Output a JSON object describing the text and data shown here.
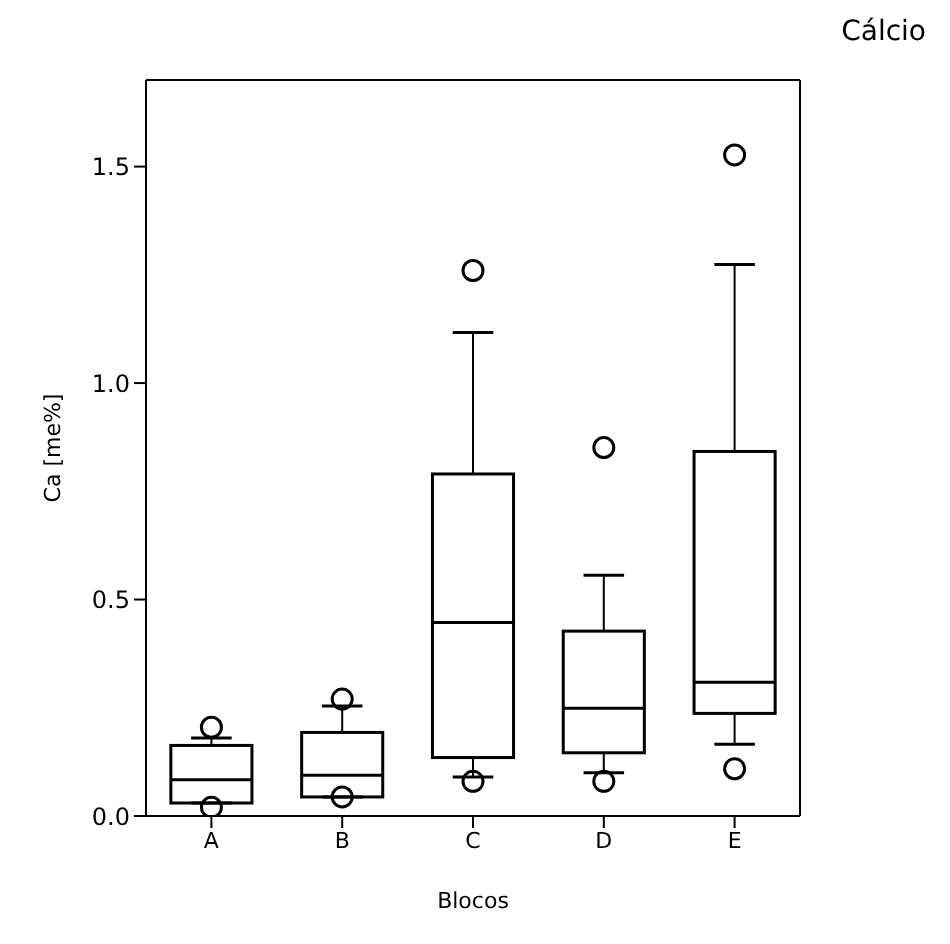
{
  "chart_data": {
    "type": "box",
    "title": "Cálcio",
    "xlabel": "Blocos",
    "ylabel": "Ca [me%]",
    "color": "#000000",
    "categories": [
      "A",
      "B",
      "C",
      "D",
      "E"
    ],
    "boxes": [
      {
        "low": 0.03,
        "q1": 0.03,
        "median": 0.084,
        "q3": 0.163,
        "high": 0.18,
        "outliers": [
          0.205,
          0.02
        ]
      },
      {
        "low": 0.044,
        "q1": 0.044,
        "median": 0.094,
        "q3": 0.193,
        "high": 0.254,
        "outliers": [
          0.27,
          0.044
        ]
      },
      {
        "low": 0.09,
        "q1": 0.135,
        "median": 0.447,
        "q3": 0.79,
        "high": 1.117,
        "outliers": [
          1.26,
          0.08
        ]
      },
      {
        "low": 0.1,
        "q1": 0.146,
        "median": 0.249,
        "q3": 0.427,
        "high": 0.556,
        "outliers": [
          0.851,
          0.08
        ]
      },
      {
        "low": 0.166,
        "q1": 0.237,
        "median": 0.309,
        "q3": 0.842,
        "high": 1.274,
        "outliers": [
          1.527,
          0.109
        ]
      }
    ],
    "ylim": [
      0,
      1.7
    ],
    "yticks": [
      {
        "value": 0,
        "label": "0.0"
      },
      0.5,
      {
        "value": 1,
        "label": "1.0"
      },
      1.5
    ]
  }
}
